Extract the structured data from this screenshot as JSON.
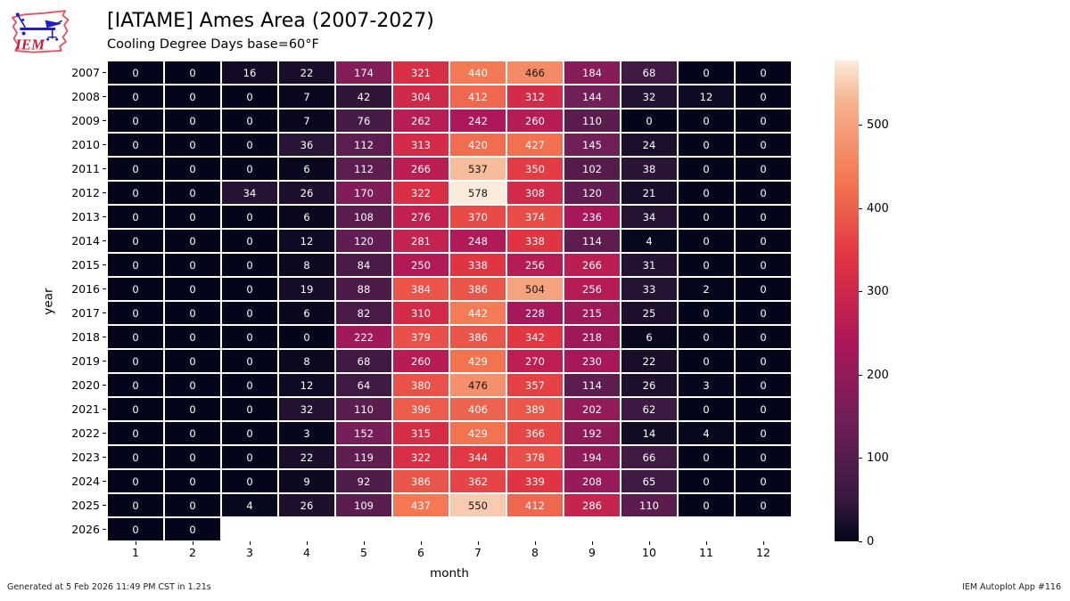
{
  "header": {
    "title": "[IATAME] Ames Area (2007-2027)",
    "subtitle": "Cooling Degree Days base=60°F",
    "logo_text": "IEM"
  },
  "logo_colors": {
    "outline": "#e25564",
    "instrument": "#2020c0",
    "text": "#c41e3a"
  },
  "footer": {
    "generated": "Generated at 5 Feb 2026 11:49 PM CST in 1.21s",
    "app": "IEM Autoplot App #116"
  },
  "chart_data": {
    "type": "heatmap",
    "title": "[IATAME] Ames Area (2007-2027)",
    "subtitle": "Cooling Degree Days base=60°F",
    "xlabel": "month",
    "ylabel": "year",
    "x_ticks": [
      1,
      2,
      3,
      4,
      5,
      6,
      7,
      8,
      9,
      10,
      11,
      12
    ],
    "years": [
      2007,
      2008,
      2009,
      2010,
      2011,
      2012,
      2013,
      2014,
      2015,
      2016,
      2017,
      2018,
      2019,
      2020,
      2021,
      2022,
      2023,
      2024,
      2025,
      2026
    ],
    "values": [
      [
        0,
        0,
        16,
        22,
        174,
        321,
        440,
        466,
        184,
        68,
        0,
        0
      ],
      [
        0,
        0,
        0,
        7,
        42,
        304,
        412,
        312,
        144,
        32,
        12,
        0
      ],
      [
        0,
        0,
        0,
        7,
        76,
        262,
        242,
        260,
        110,
        0,
        0,
        0
      ],
      [
        0,
        0,
        0,
        36,
        112,
        313,
        420,
        427,
        145,
        24,
        0,
        0
      ],
      [
        0,
        0,
        0,
        6,
        112,
        266,
        537,
        350,
        102,
        38,
        0,
        0
      ],
      [
        0,
        0,
        34,
        26,
        170,
        322,
        578,
        308,
        120,
        21,
        0,
        0
      ],
      [
        0,
        0,
        0,
        6,
        108,
        276,
        370,
        374,
        236,
        34,
        0,
        0
      ],
      [
        0,
        0,
        0,
        12,
        120,
        281,
        248,
        338,
        114,
        4,
        0,
        0
      ],
      [
        0,
        0,
        0,
        8,
        84,
        250,
        338,
        256,
        266,
        31,
        0,
        0
      ],
      [
        0,
        0,
        0,
        19,
        88,
        384,
        386,
        504,
        256,
        33,
        2,
        0
      ],
      [
        0,
        0,
        0,
        6,
        82,
        310,
        442,
        228,
        215,
        25,
        0,
        0
      ],
      [
        0,
        0,
        0,
        0,
        222,
        379,
        386,
        342,
        218,
        6,
        0,
        0
      ],
      [
        0,
        0,
        0,
        8,
        68,
        260,
        429,
        270,
        230,
        22,
        0,
        0
      ],
      [
        0,
        0,
        0,
        12,
        64,
        380,
        476,
        357,
        114,
        26,
        3,
        0
      ],
      [
        0,
        0,
        0,
        32,
        110,
        396,
        406,
        389,
        202,
        62,
        0,
        0
      ],
      [
        0,
        0,
        0,
        3,
        152,
        315,
        429,
        366,
        192,
        14,
        4,
        0
      ],
      [
        0,
        0,
        0,
        22,
        119,
        322,
        344,
        378,
        194,
        66,
        0,
        0
      ],
      [
        0,
        0,
        0,
        9,
        92,
        386,
        362,
        339,
        208,
        65,
        0,
        0
      ],
      [
        0,
        0,
        4,
        26,
        109,
        437,
        550,
        412,
        286,
        110,
        0,
        0
      ],
      [
        0,
        0
      ]
    ],
    "vmin": 0,
    "vmax": 578,
    "colorbar_ticks": [
      0,
      100,
      200,
      300,
      400,
      500
    ],
    "legend_position": "right",
    "grid": false,
    "colormap": {
      "name": "rocket",
      "stops": [
        {
          "pos": 0.0,
          "color": "#03051a"
        },
        {
          "pos": 0.0833,
          "color": "#35193e"
        },
        {
          "pos": 0.25,
          "color": "#701f57"
        },
        {
          "pos": 0.4167,
          "color": "#ad1759"
        },
        {
          "pos": 0.5833,
          "color": "#e13342"
        },
        {
          "pos": 0.75,
          "color": "#f37651"
        },
        {
          "pos": 0.9167,
          "color": "#f6b48f"
        },
        {
          "pos": 1.0,
          "color": "#faebdd"
        }
      ],
      "annot_dark_color": "#151515",
      "annot_light_color": "#ffffff",
      "dark_text_threshold": 0.79
    }
  }
}
